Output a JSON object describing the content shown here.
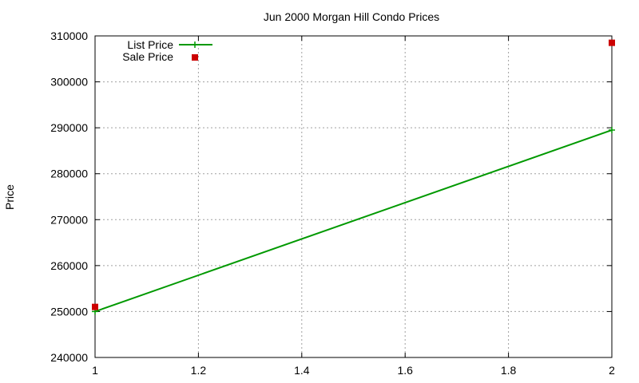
{
  "chart_data": {
    "type": "line",
    "title": "Jun 2000 Morgan Hill Condo Prices",
    "xlabel": "",
    "ylabel": "Price",
    "xlim": [
      1,
      2
    ],
    "ylim": [
      240000,
      310000
    ],
    "x_ticks": [
      1,
      1.2,
      1.4,
      1.6,
      1.8,
      2
    ],
    "x_tick_labels": [
      "1",
      "1.2",
      "1.4",
      "1.6",
      "1.8",
      "2"
    ],
    "y_ticks": [
      240000,
      250000,
      260000,
      270000,
      280000,
      290000,
      300000,
      310000
    ],
    "y_tick_labels": [
      "240000",
      "250000",
      "260000",
      "270000",
      "280000",
      "290000",
      "300000",
      "310000"
    ],
    "grid": true,
    "legend_position": "top-left",
    "series": [
      {
        "name": "List Price",
        "style": "line-points",
        "color": "#009900",
        "x": [
          1,
          2
        ],
        "y": [
          250000,
          289500
        ]
      },
      {
        "name": "Sale Price",
        "style": "points",
        "color": "#cc0000",
        "x": [
          1,
          2
        ],
        "y": [
          251000,
          308500
        ]
      }
    ]
  }
}
